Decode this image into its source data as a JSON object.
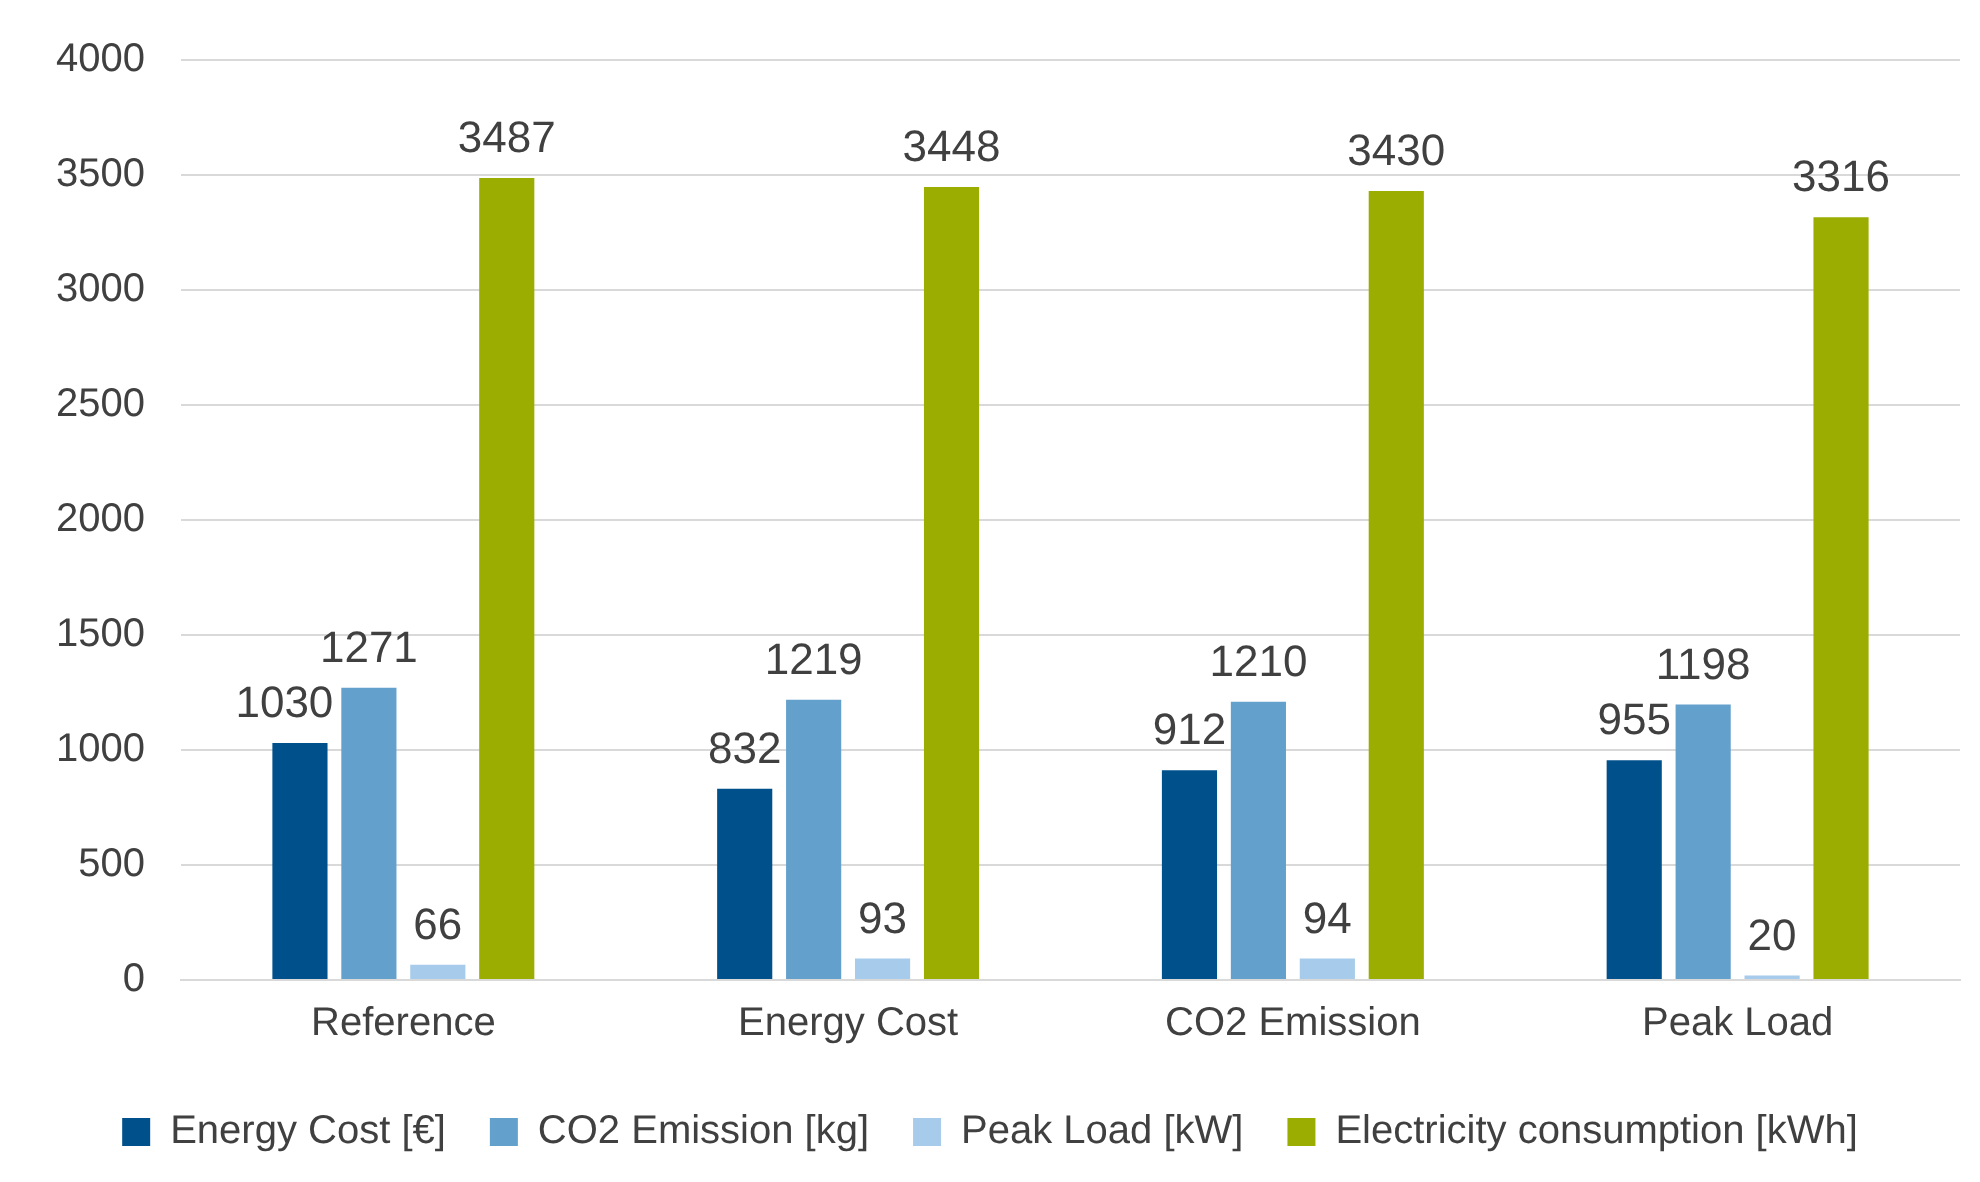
{
  "chart_data": {
    "type": "bar",
    "categories": [
      "Reference",
      "Energy Cost",
      "CO2 Emission",
      "Peak Load"
    ],
    "series": [
      {
        "name": "Energy Cost [€]",
        "color": "#00508c",
        "values": [
          1030,
          832,
          912,
          955
        ]
      },
      {
        "name": "CO2 Emission [kg]",
        "color": "#63a0cc",
        "values": [
          1271,
          1219,
          1210,
          1198
        ]
      },
      {
        "name": "Peak Load [kW]",
        "color": "#a6cbeb",
        "values": [
          66,
          93,
          94,
          20
        ]
      },
      {
        "name": "Electricity consumption [kWh]",
        "color": "#9aad00",
        "values": [
          3487,
          3448,
          3430,
          3316
        ]
      }
    ],
    "ylim": [
      0,
      4000
    ],
    "yticks": [
      0,
      500,
      1000,
      1500,
      2000,
      2500,
      3000,
      3500,
      4000
    ],
    "grid": "y",
    "legend": "bottom",
    "data_labels": true
  }
}
